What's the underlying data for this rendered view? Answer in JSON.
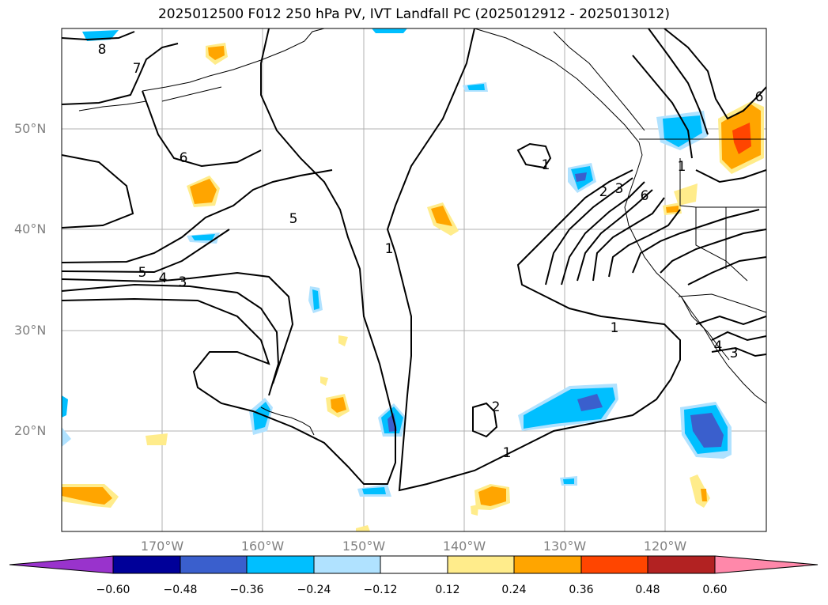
{
  "title": "2025012500 F012 250 hPa PV, IVT Landfall PC (2025012912 - 2025013012)",
  "lat_labels": [
    "50°N",
    "40°N",
    "30°N",
    "20°N"
  ],
  "lon_labels": [
    "170°W",
    "160°W",
    "150°W",
    "140°W",
    "130°W",
    "120°W"
  ],
  "contour_labels": [
    "8",
    "7",
    "6",
    "5",
    "5",
    "4",
    "3",
    "1",
    "1",
    "2",
    "3",
    "6",
    "1",
    "1",
    "2",
    "1",
    "4",
    "3",
    "6"
  ],
  "colorbar": {
    "ticks": [
      "−0.60",
      "−0.48",
      "−0.36",
      "−0.24",
      "−0.12",
      "0.12",
      "0.24",
      "0.36",
      "0.48",
      "0.60"
    ],
    "colors": [
      "#9933cc",
      "#000099",
      "#3a5fcd",
      "#00bfff",
      "#b0e2ff",
      "#ffffff",
      "#ffec8b",
      "#ffa500",
      "#ff4500",
      "#b22222",
      "#ff88aa"
    ]
  }
}
